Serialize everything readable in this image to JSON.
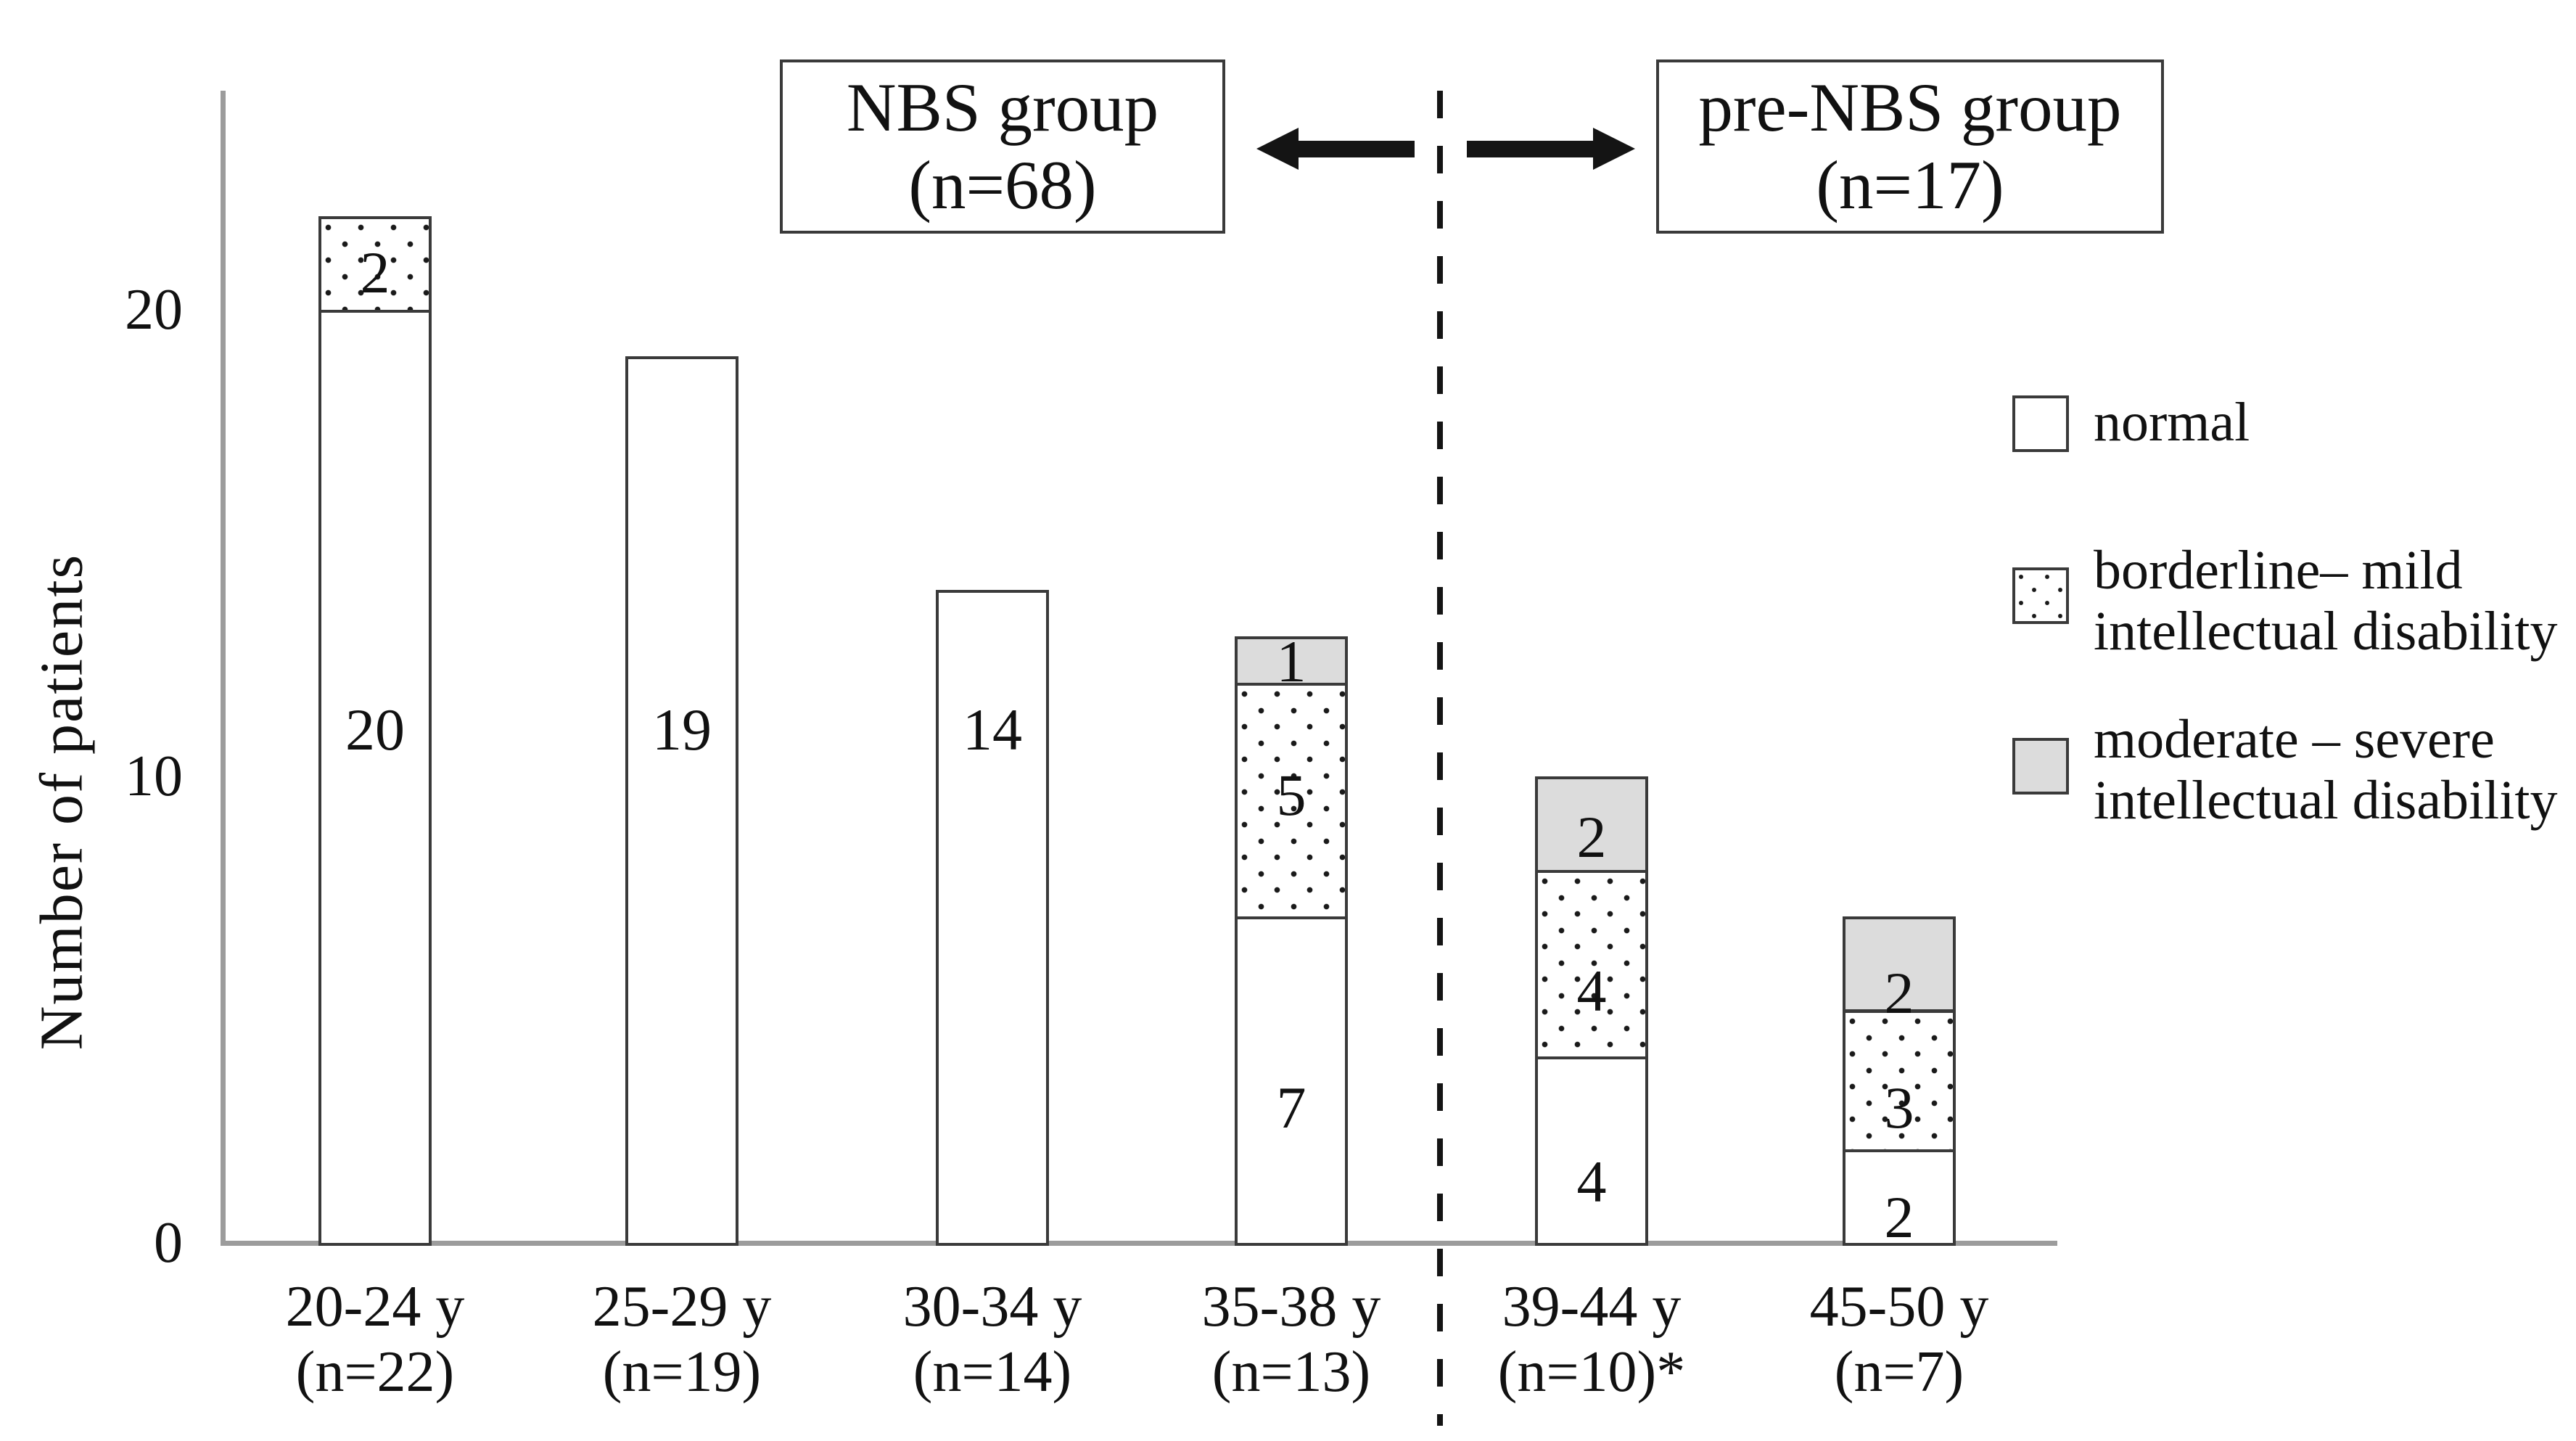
{
  "chart_data": {
    "type": "bar",
    "stacked": true,
    "title": "",
    "ylabel": "Number of patients",
    "xlabel": "",
    "ylim": [
      0,
      24.7
    ],
    "yticks": [
      0,
      10,
      20
    ],
    "grid": false,
    "legend_position": "right",
    "categories": [
      {
        "line1": "20-24 y",
        "line2": "(n=22)"
      },
      {
        "line1": "25-29 y",
        "line2": "(n=19)"
      },
      {
        "line1": "30-34 y",
        "line2": "(n=14)"
      },
      {
        "line1": "35-38 y",
        "line2": "(n=13)"
      },
      {
        "line1": "39-44 y",
        "line2": "(n=10)*"
      },
      {
        "line1": "45-50 y",
        "line2": "(n=7)"
      }
    ],
    "series": [
      {
        "key": "normal",
        "name": "normal",
        "values": [
          20,
          19,
          14,
          7,
          4,
          2
        ],
        "label_at": [
          11,
          11,
          11,
          2.9,
          1.3,
          0.55
        ]
      },
      {
        "key": "borderline",
        "name": "borderline– mild intellectual disability",
        "values": [
          2,
          0,
          0,
          5,
          4,
          3
        ],
        "label_at": [
          20.8,
          null,
          null,
          9.6,
          5.4,
          2.9
        ]
      },
      {
        "key": "moderate",
        "name": "moderate – severe intellectual disability",
        "values": [
          0,
          0,
          0,
          1,
          2,
          2
        ],
        "label_at": [
          null,
          null,
          null,
          12.45,
          8.7,
          5.35
        ]
      }
    ]
  },
  "groups": {
    "nbs": {
      "line1": "NBS group",
      "line2": "(n=68)"
    },
    "pre_nbs": {
      "line1": "pre-NBS group",
      "line2": "(n=17)"
    }
  },
  "legend": {
    "items": [
      {
        "key": "normal",
        "lines": [
          "normal"
        ]
      },
      {
        "key": "borderline",
        "lines": [
          "borderline– mild",
          "intellectual disability"
        ]
      },
      {
        "key": "moderate",
        "lines": [
          "moderate – severe",
          "intellectual disability"
        ]
      }
    ]
  },
  "colors": {
    "bar_border": "#3a3a3a",
    "fill_normal": "#ffffff",
    "fill_borderline_dot": "#1a1a1a",
    "fill_moderate": "#dcdcdc",
    "axis": "#9c9c9c",
    "ink": "#141414"
  }
}
